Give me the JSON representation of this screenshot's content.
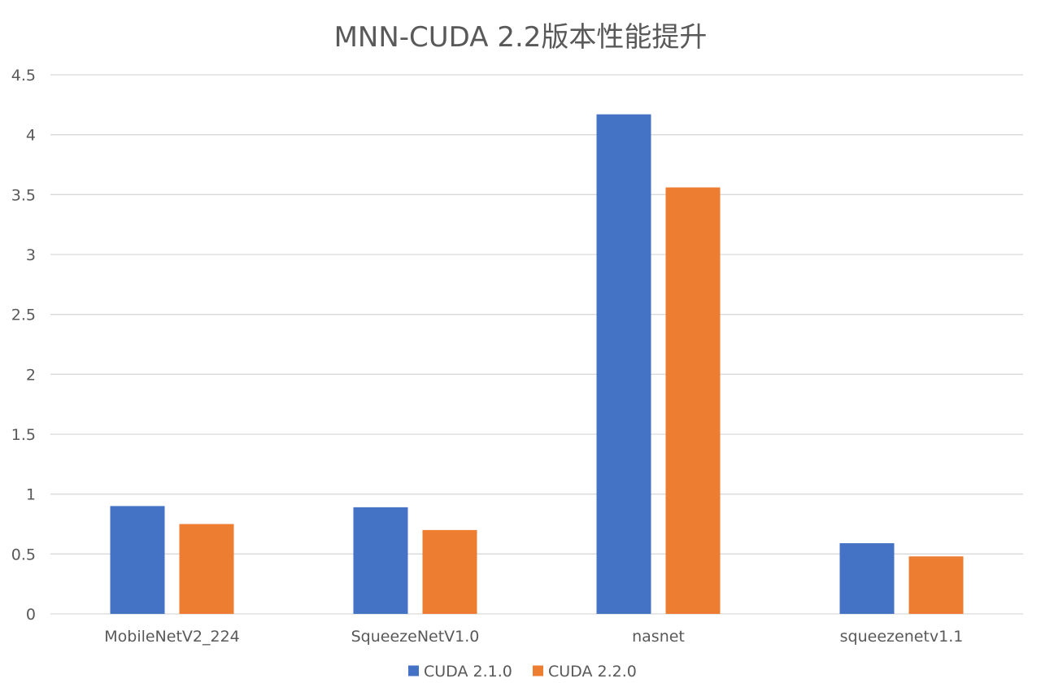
{
  "chart_data": {
    "type": "bar",
    "title": "MNN-CUDA 2.2版本性能提升",
    "xlabel": "",
    "ylabel": "",
    "categories": [
      "MobileNetV2_224",
      "SqueezeNetV1.0",
      "nasnet",
      "squeezenetv1.1"
    ],
    "series": [
      {
        "name": "CUDA 2.1.0",
        "color": "#4472C4",
        "values": [
          0.9,
          0.89,
          4.17,
          0.59
        ]
      },
      {
        "name": "CUDA 2.2.0",
        "color": "#ED7D31",
        "values": [
          0.75,
          0.7,
          3.56,
          0.48
        ]
      }
    ],
    "ylim": [
      0,
      4.5
    ],
    "yticks": [
      "0",
      "0.5",
      "1",
      "1.5",
      "2",
      "2.5",
      "3",
      "3.5",
      "4",
      "4.5"
    ],
    "grid": true,
    "legend_position": "bottom"
  }
}
